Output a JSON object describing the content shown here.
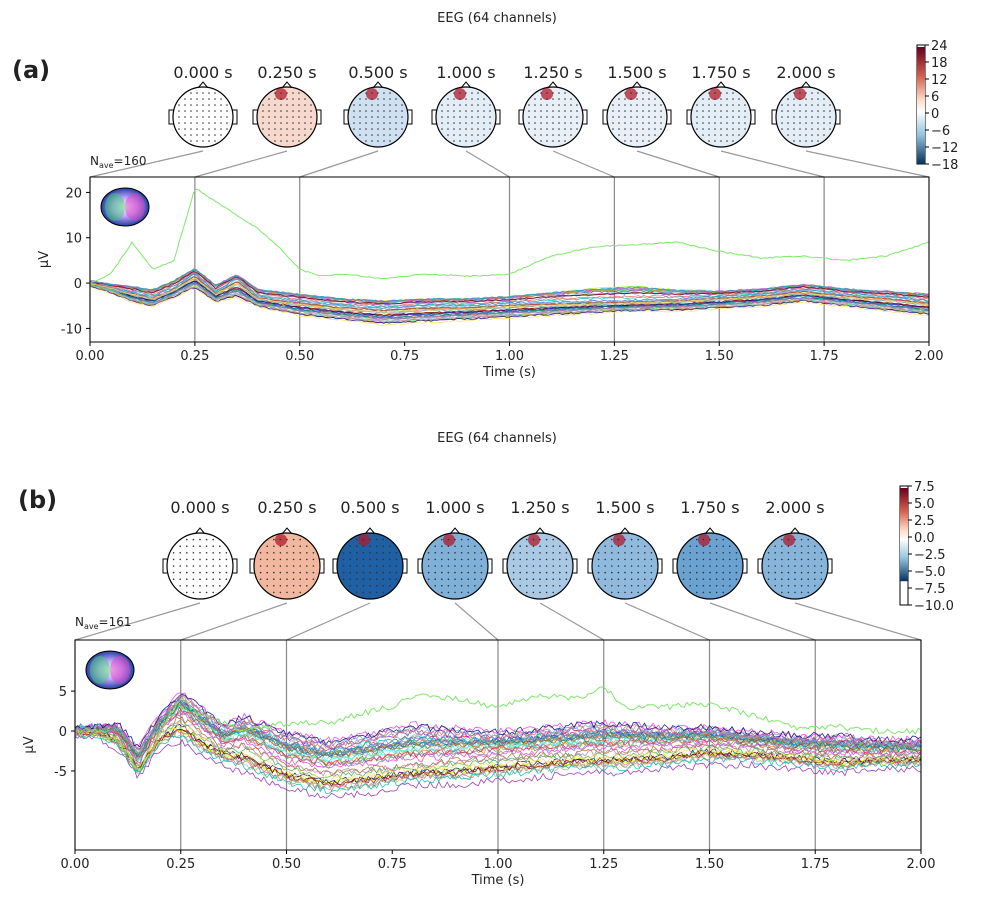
{
  "chart_data": [
    {
      "type": "line",
      "panel_label": "(a)",
      "title": "EEG (64 channels)",
      "nave_label": "N",
      "nave_sub": "ave",
      "nave_value": "=160",
      "xlabel": "Time (s)",
      "ylabel": "µV",
      "xlim": [
        0,
        2
      ],
      "ylim": [
        -13,
        23.4
      ],
      "xticks": [
        "0.00",
        "0.25",
        "0.50",
        "0.75",
        "1.00",
        "1.25",
        "1.50",
        "1.75",
        "2.00"
      ],
      "yticks": [
        "-10",
        "0",
        "10",
        "20"
      ],
      "topomap_times": [
        "0.000 s",
        "0.250 s",
        "0.500 s",
        "1.000 s",
        "1.250 s",
        "1.500 s",
        "1.750 s",
        "2.000 s"
      ],
      "topomap_time_values": [
        0,
        0.25,
        0.5,
        1.0,
        1.25,
        1.5,
        1.75,
        2.0
      ],
      "topomap_colors": [
        "#ffffff",
        "#f6d9cc",
        "#cfe1f0",
        "#e3edf6",
        "#e8eff6",
        "#e8eff6",
        "#e3edf6",
        "#e3edf6"
      ],
      "colorbar_ticks": [
        "24",
        "18",
        "12",
        "6",
        "0",
        "−6",
        "−12",
        "−18"
      ],
      "colorbar_range": [
        -20,
        24
      ],
      "x": [
        0,
        0.05,
        0.1,
        0.15,
        0.2,
        0.25,
        0.3,
        0.35,
        0.4,
        0.45,
        0.5,
        0.55,
        0.6,
        0.7,
        0.8,
        0.9,
        1.0,
        1.1,
        1.2,
        1.3,
        1.4,
        1.5,
        1.6,
        1.7,
        1.8,
        1.9,
        2.0
      ],
      "series": [
        {
          "role": "outlier",
          "color": "#7ee86a",
          "values": [
            0,
            2,
            9,
            3,
            5,
            21,
            18,
            15,
            12,
            8,
            3,
            1.5,
            2,
            1,
            2,
            1.5,
            2,
            6,
            8,
            8.5,
            9,
            7,
            5.5,
            6,
            5,
            6,
            9
          ]
        },
        {
          "role": "upper",
          "values": [
            0.5,
            0,
            -0.5,
            -1,
            1,
            3.5,
            0,
            2,
            -1,
            -1.5,
            -2,
            -2.5,
            -3,
            -3.5,
            -3,
            -3,
            -2.5,
            -1.5,
            -0.5,
            0,
            -1,
            -1.5,
            -1,
            0,
            -1,
            -1.5,
            -2
          ]
        },
        {
          "role": "mean",
          "values": [
            0,
            -1,
            -2,
            -3,
            -1,
            2,
            -2,
            1,
            -3,
            -3.5,
            -4,
            -4.5,
            -5,
            -5.5,
            -5,
            -5,
            -4.5,
            -4.2,
            -4,
            -3.8,
            -3.5,
            -3,
            -2.5,
            -1.5,
            -2.5,
            -3,
            -4
          ]
        },
        {
          "role": "lower",
          "values": [
            -0.5,
            -2,
            -4,
            -5,
            -3,
            -1,
            -4,
            -3,
            -5,
            -6,
            -7,
            -7.5,
            -8,
            -9,
            -8.5,
            -8,
            -7.5,
            -7,
            -6.5,
            -6,
            -6,
            -5.5,
            -5,
            -4,
            -5,
            -6,
            -7
          ]
        }
      ]
    },
    {
      "type": "line",
      "panel_label": "(b)",
      "title": "EEG (64 channels)",
      "nave_label": "N",
      "nave_sub": "ave",
      "nave_value": "=161",
      "xlabel": "Time (s)",
      "ylabel": "µV",
      "xlim": [
        0,
        2
      ],
      "ylim": [
        -14.9,
        11.4
      ],
      "xticks": [
        "0.00",
        "0.25",
        "0.50",
        "0.75",
        "1.00",
        "1.25",
        "1.50",
        "1.75",
        "2.00"
      ],
      "yticks": [
        "-5",
        "0",
        "5"
      ],
      "topomap_times": [
        "0.000 s",
        "0.250 s",
        "0.500 s",
        "1.000 s",
        "1.250 s",
        "1.500 s",
        "1.750 s",
        "2.000 s"
      ],
      "topomap_time_values": [
        0,
        0.25,
        0.5,
        1.0,
        1.25,
        1.5,
        1.75,
        2.0
      ],
      "topomap_colors": [
        "#ffffff",
        "#f1b89f",
        "#1f5fa3",
        "#7fb0d8",
        "#a9c9e4",
        "#8fbadd",
        "#6aa2d1",
        "#86b4da"
      ],
      "colorbar_ticks": [
        "7.5",
        "5.0",
        "2.5",
        "0.0",
        "−2.5",
        "−5.0",
        "−7.5",
        "−10.0"
      ],
      "colorbar_range": [
        -10,
        7.5
      ],
      "x": [
        0,
        0.05,
        0.1,
        0.15,
        0.2,
        0.25,
        0.3,
        0.35,
        0.4,
        0.5,
        0.6,
        0.7,
        0.75,
        0.8,
        0.9,
        1.0,
        1.1,
        1.2,
        1.25,
        1.3,
        1.4,
        1.5,
        1.6,
        1.7,
        1.8,
        1.9,
        2.0
      ],
      "series": [
        {
          "role": "outlier",
          "color": "#7ee86a",
          "values": [
            0,
            0,
            -1,
            -5,
            0,
            4,
            2,
            1,
            0,
            1,
            1,
            2.5,
            3,
            4.5,
            4,
            3,
            4.5,
            4,
            5.5,
            3,
            3,
            3.5,
            2,
            0.5,
            0.5,
            0,
            0
          ]
        },
        {
          "role": "upper",
          "values": [
            0.5,
            0.5,
            1,
            -2,
            2,
            5,
            3,
            1,
            2,
            0,
            -1,
            0,
            0.5,
            1,
            0.5,
            0,
            0.5,
            1,
            1.2,
            1,
            0.5,
            0.5,
            0,
            -0.5,
            -0.5,
            -1,
            -1
          ]
        },
        {
          "role": "mean",
          "values": [
            0,
            0,
            -0.5,
            -4.5,
            0,
            2,
            0,
            -2,
            -1.5,
            -4,
            -5,
            -4.5,
            -4.3,
            -4,
            -3.5,
            -3,
            -2.8,
            -2.5,
            -2.4,
            -2.3,
            -2,
            -1.5,
            -2,
            -2.5,
            -3,
            -3,
            -3
          ]
        },
        {
          "role": "lower",
          "values": [
            -0.5,
            -0.5,
            -2,
            -5.5,
            -2,
            -1,
            -3,
            -4,
            -5,
            -7,
            -8,
            -7.5,
            -7,
            -6.5,
            -6.5,
            -6,
            -5.5,
            -5,
            -5,
            -5,
            -4.5,
            -4,
            -4,
            -4.5,
            -5,
            -4.5,
            -4.5
          ]
        }
      ]
    }
  ]
}
